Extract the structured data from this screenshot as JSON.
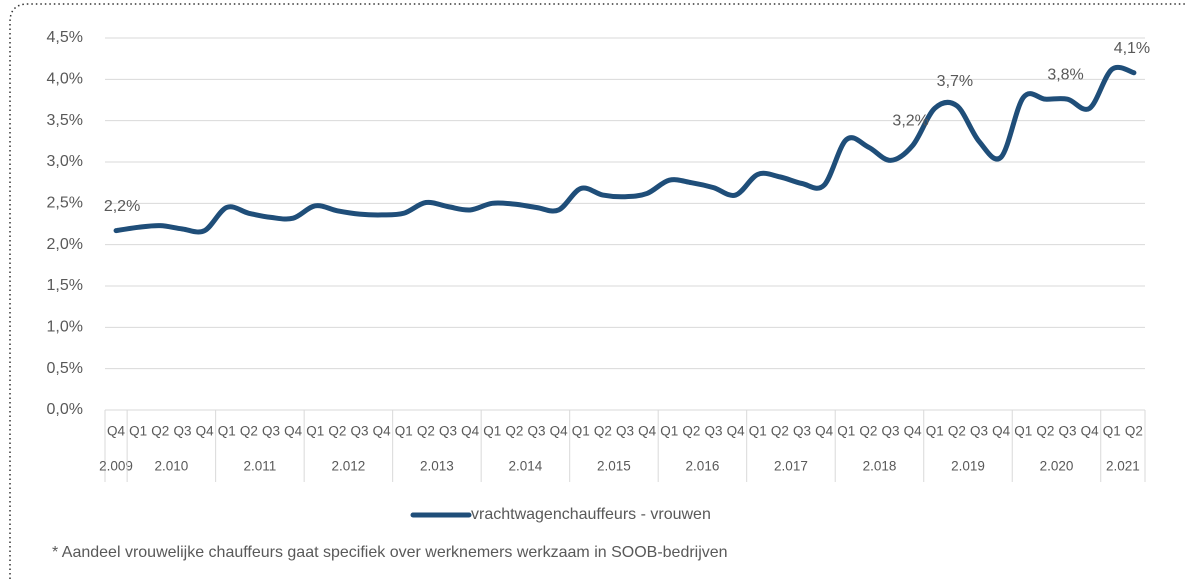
{
  "chart_data": {
    "type": "line",
    "categories": [
      "Q4",
      "Q1",
      "Q2",
      "Q3",
      "Q4",
      "Q1",
      "Q2",
      "Q3",
      "Q4",
      "Q1",
      "Q2",
      "Q3",
      "Q4",
      "Q1",
      "Q2",
      "Q3",
      "Q4",
      "Q1",
      "Q2",
      "Q3",
      "Q4",
      "Q1",
      "Q2",
      "Q3",
      "Q4",
      "Q1",
      "Q2",
      "Q3",
      "Q4",
      "Q1",
      "Q2",
      "Q3",
      "Q4",
      "Q1",
      "Q2",
      "Q3",
      "Q4",
      "Q1",
      "Q2",
      "Q3",
      "Q4",
      "Q1",
      "Q2",
      "Q3",
      "Q4",
      "Q1",
      "Q2"
    ],
    "category_years": [
      "2.009",
      "2.010",
      "2.010",
      "2.010",
      "2.010",
      "2.011",
      "2.011",
      "2.011",
      "2.011",
      "2.012",
      "2.012",
      "2.012",
      "2.012",
      "2.013",
      "2.013",
      "2.013",
      "2.013",
      "2.014",
      "2.014",
      "2.014",
      "2.014",
      "2.015",
      "2.015",
      "2.015",
      "2.015",
      "2.016",
      "2.016",
      "2.016",
      "2.016",
      "2.017",
      "2.017",
      "2.017",
      "2.017",
      "2.018",
      "2.018",
      "2.018",
      "2.018",
      "2.019",
      "2.019",
      "2.019",
      "2.019",
      "2.020",
      "2.020",
      "2.020",
      "2.020",
      "2.021",
      "2.021"
    ],
    "series": [
      {
        "name": "vrachtwagenchauffeurs - vrouwen",
        "color": "#1f4e79",
        "values": [
          2.17,
          2.21,
          2.23,
          2.19,
          2.17,
          2.45,
          2.38,
          2.33,
          2.32,
          2.47,
          2.41,
          2.37,
          2.36,
          2.38,
          2.51,
          2.46,
          2.42,
          2.5,
          2.49,
          2.45,
          2.42,
          2.68,
          2.6,
          2.58,
          2.62,
          2.78,
          2.75,
          2.69,
          2.6,
          2.85,
          2.82,
          2.74,
          2.72,
          3.27,
          3.18,
          3.02,
          3.2,
          3.65,
          3.68,
          3.25,
          3.06,
          3.78,
          3.76,
          3.76,
          3.65,
          4.12,
          4.08
        ],
        "value_labels": [
          "2,2%",
          null,
          null,
          null,
          null,
          null,
          null,
          null,
          null,
          null,
          null,
          null,
          null,
          null,
          null,
          null,
          null,
          null,
          null,
          null,
          null,
          null,
          null,
          null,
          null,
          null,
          null,
          null,
          null,
          null,
          null,
          null,
          null,
          null,
          null,
          null,
          "3,2%",
          null,
          "3,7%",
          null,
          null,
          null,
          null,
          "3,8%",
          null,
          null,
          "4,1%"
        ]
      }
    ],
    "ylim": [
      0,
      4.5
    ],
    "yticks": [
      {
        "value": 0,
        "label": "0,0%"
      },
      {
        "value": 0.5,
        "label": "0,5%"
      },
      {
        "value": 1,
        "label": "1,0%"
      },
      {
        "value": 1.5,
        "label": "1,5%"
      },
      {
        "value": 2,
        "label": "2,0%"
      },
      {
        "value": 2.5,
        "label": "2,5%"
      },
      {
        "value": 3,
        "label": "3,0%"
      },
      {
        "value": 3.5,
        "label": "3,5%"
      },
      {
        "value": 4,
        "label": "4,0%"
      },
      {
        "value": 4.5,
        "label": "4,5%"
      }
    ],
    "grid": true,
    "footnote": "* Aandeel vrouwelijke chauffeurs gaat specifiek over werknemers werkzaam in SOOB-bedrijven"
  }
}
